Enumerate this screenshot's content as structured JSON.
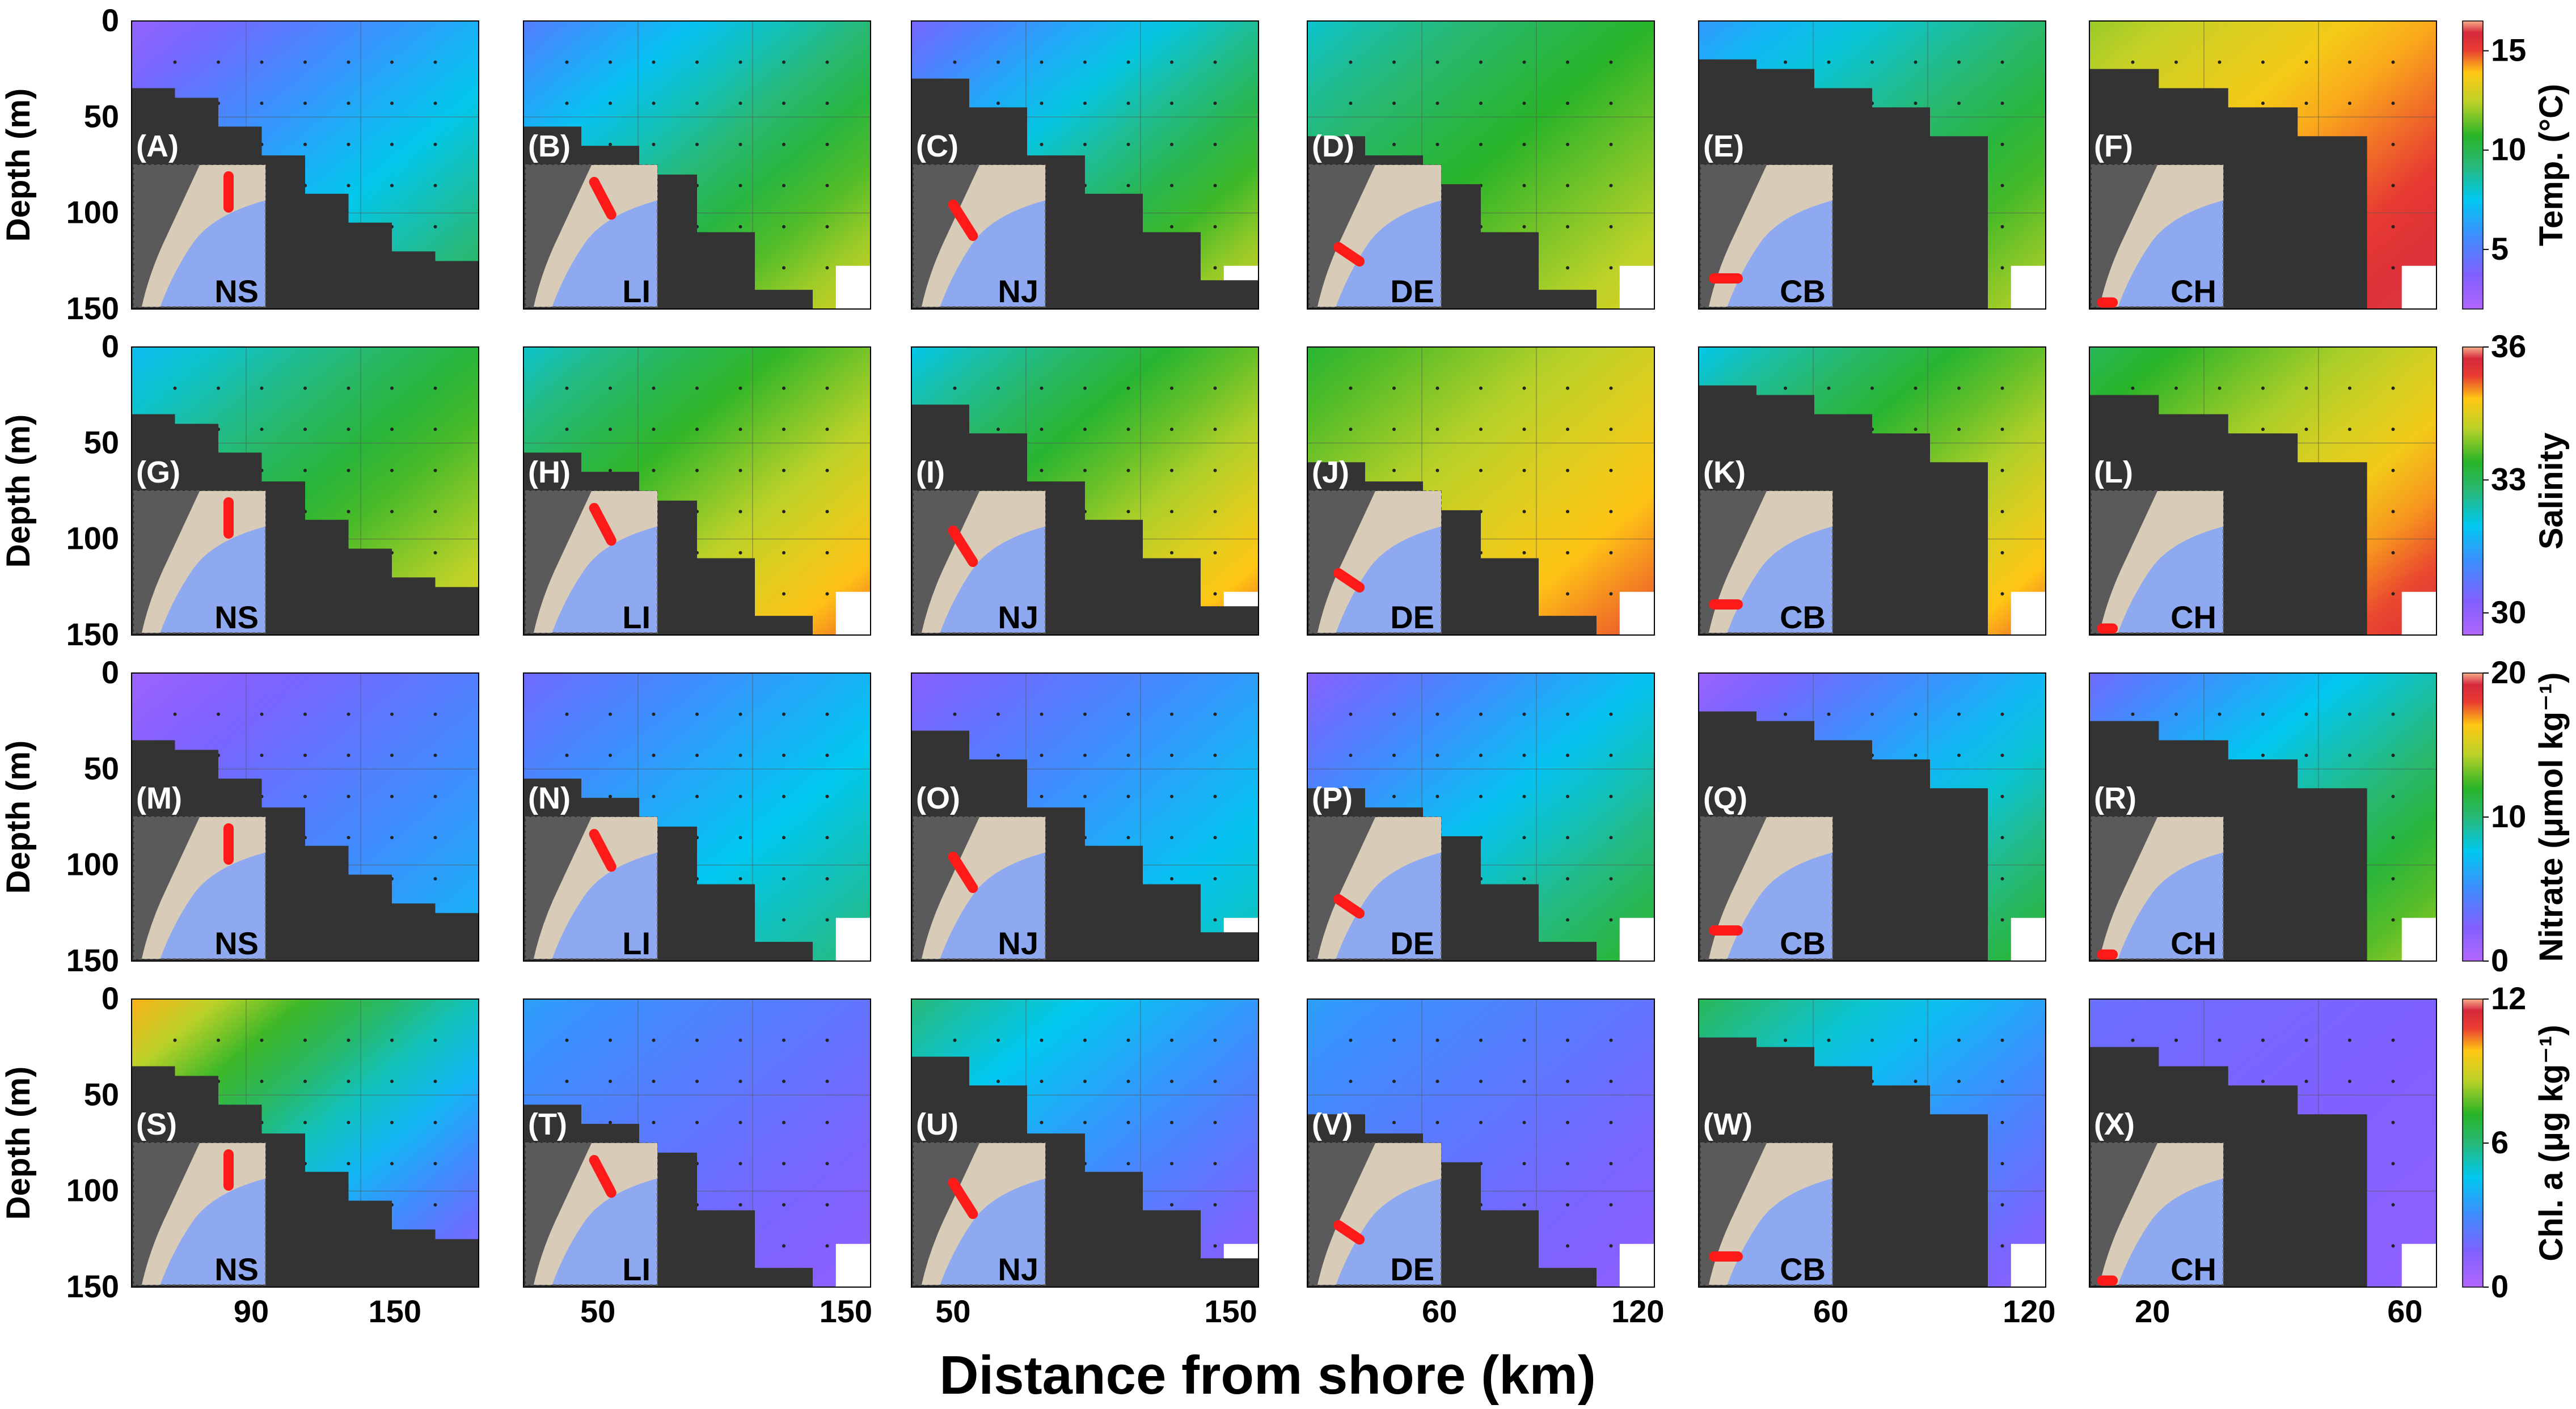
{
  "chart_data": {
    "type": "heatmap",
    "x_axis_title": "Distance from shore (km)",
    "y_axis_title": "Depth (m)",
    "y_ticks": [
      "0",
      "50",
      "100",
      "150"
    ],
    "y_tick_values": [
      0,
      50,
      100,
      150
    ],
    "ylim": [
      150,
      0
    ],
    "grid": true,
    "columns": [
      {
        "transect": "NS",
        "xlim": [
          40,
          185
        ],
        "x_ticks": [
          90,
          150
        ],
        "bottom_m": [
          35,
          40,
          55,
          70,
          90,
          105,
          120,
          125
        ],
        "colorscale_hint": 1.0
      },
      {
        "transect": "LI",
        "xlim": [
          20,
          160
        ],
        "x_ticks": [
          50,
          150
        ],
        "bottom_m": [
          55,
          65,
          80,
          110,
          140,
          150
        ],
        "colorscale_hint": 0.85
      },
      {
        "transect": "NJ",
        "xlim": [
          35,
          160
        ],
        "x_ticks": [
          50,
          150
        ],
        "bottom_m": [
          30,
          45,
          70,
          90,
          110,
          135
        ],
        "colorscale_hint": 0.85
      },
      {
        "transect": "DE",
        "xlim": [
          20,
          125
        ],
        "x_ticks": [
          60,
          120
        ],
        "bottom_m": [
          60,
          70,
          85,
          110,
          140,
          150
        ],
        "colorscale_hint": 0.8
      },
      {
        "transect": "CB",
        "xlim": [
          20,
          125
        ],
        "x_ticks": [
          60,
          120
        ],
        "bottom_m": [
          20,
          25,
          35,
          45,
          60,
          150
        ],
        "colorscale_hint": 0.7
      },
      {
        "transect": "CH",
        "xlim": [
          10,
          65
        ],
        "x_ticks": [
          20,
          60
        ],
        "bottom_m": [
          25,
          35,
          45,
          60,
          150
        ],
        "colorscale_hint": 0.8
      }
    ],
    "rows": [
      {
        "variable": "Temp.",
        "colorbar_label": "Temp. (°C)",
        "colorbar_ticks": [
          "15",
          "10",
          "5"
        ],
        "colorbar_tick_values": [
          15,
          10,
          5
        ],
        "range": [
          2,
          16.5
        ],
        "panels": [
          {
            "letter": "(A)",
            "transect": "NS",
            "surface": 3,
            "deep": 10,
            "mid_x": 0.65
          },
          {
            "letter": "(B)",
            "transect": "LI",
            "surface": 5,
            "deep": 13,
            "mid_x": 0.55
          },
          {
            "letter": "(C)",
            "transect": "NJ",
            "surface": 4,
            "deep": 13,
            "mid_x": 0.6
          },
          {
            "letter": "(D)",
            "transect": "DE",
            "surface": 8,
            "deep": 13,
            "mid_x": 0.6
          },
          {
            "letter": "(E)",
            "transect": "CB",
            "surface": 6,
            "deep": 12.5,
            "mid_x": 0.8
          },
          {
            "letter": "(F)",
            "transect": "CH",
            "surface": 12,
            "deep": 16,
            "mid_x": 0.4
          }
        ]
      },
      {
        "variable": "Salinity",
        "colorbar_label": "Salinity",
        "colorbar_ticks": [
          "36",
          "33",
          "30"
        ],
        "colorbar_tick_values": [
          36,
          33,
          30
        ],
        "range": [
          29.5,
          36
        ],
        "panels": [
          {
            "letter": "(G)",
            "transect": "NS",
            "surface": 31.8,
            "deep": 34.5,
            "mid_x": 0.65
          },
          {
            "letter": "(H)",
            "transect": "LI",
            "surface": 32.2,
            "deep": 35.2,
            "mid_x": 0.55
          },
          {
            "letter": "(I)",
            "transect": "NJ",
            "surface": 32.0,
            "deep": 35.2,
            "mid_x": 0.6
          },
          {
            "letter": "(J)",
            "transect": "DE",
            "surface": 33.3,
            "deep": 35.3,
            "mid_x": 0.55
          },
          {
            "letter": "(K)",
            "transect": "CB",
            "surface": 32.0,
            "deep": 35.2,
            "mid_x": 0.7
          },
          {
            "letter": "(L)",
            "transect": "CH",
            "surface": 33.0,
            "deep": 35.6,
            "mid_x": 0.45
          }
        ]
      },
      {
        "variable": "Nitrate",
        "colorbar_label": "Nitrate (μmol kg⁻¹)",
        "colorbar_ticks": [
          "20",
          "10",
          "0"
        ],
        "colorbar_tick_values": [
          20,
          10,
          0
        ],
        "range": [
          0,
          20
        ],
        "panels": [
          {
            "letter": "(M)",
            "transect": "NS",
            "surface": 1,
            "deep": 7,
            "mid_x": 0.6
          },
          {
            "letter": "(N)",
            "transect": "LI",
            "surface": 3,
            "deep": 10,
            "mid_x": 0.55
          },
          {
            "letter": "(O)",
            "transect": "NJ",
            "surface": 2,
            "deep": 9,
            "mid_x": 0.55
          },
          {
            "letter": "(P)",
            "transect": "DE",
            "surface": 2,
            "deep": 12,
            "mid_x": 0.55
          },
          {
            "letter": "(Q)",
            "transect": "CB",
            "surface": 1,
            "deep": 12,
            "mid_x": 0.75
          },
          {
            "letter": "(R)",
            "transect": "CH",
            "surface": 3,
            "deep": 14,
            "mid_x": 0.6
          }
        ]
      },
      {
        "variable": "Chl. a",
        "colorbar_label": "Chl. a (μg kg⁻¹)",
        "colorbar_ticks": [
          "12",
          "6",
          "0"
        ],
        "colorbar_tick_values": [
          12,
          6,
          0
        ],
        "range": [
          0,
          12
        ],
        "panels": [
          {
            "letter": "(S)",
            "transect": "NS",
            "surface": 10,
            "deep": 1,
            "mid_x": 0.45
          },
          {
            "letter": "(T)",
            "transect": "LI",
            "surface": 3.5,
            "deep": 1,
            "mid_x": 0.55
          },
          {
            "letter": "(U)",
            "transect": "NJ",
            "surface": 6,
            "deep": 1,
            "mid_x": 0.45
          },
          {
            "letter": "(V)",
            "transect": "DE",
            "surface": 3.5,
            "deep": 1,
            "mid_x": 0.6
          },
          {
            "letter": "(W)",
            "transect": "CB",
            "surface": 6.5,
            "deep": 1,
            "mid_x": 0.7
          },
          {
            "letter": "(X)",
            "transect": "CH",
            "surface": 2,
            "deep": 1,
            "mid_x": 0.6
          }
        ]
      }
    ]
  }
}
